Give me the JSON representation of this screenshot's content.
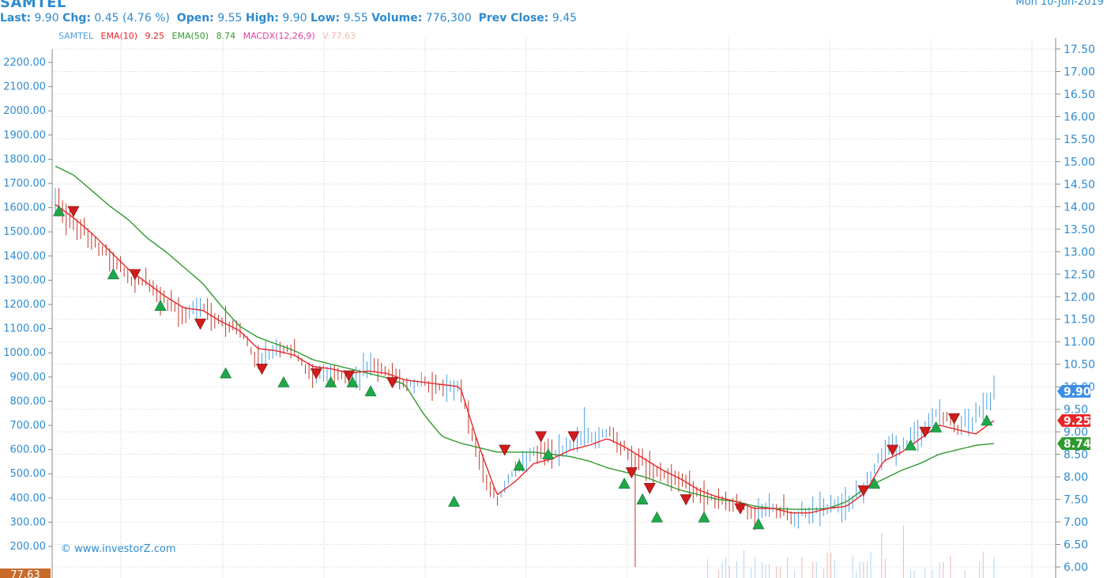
{
  "header": {
    "ticker": "SAMTEL",
    "last_label": "Last:",
    "last_value": "9.90",
    "chg_label": "Chg:",
    "chg_value": "0.45 (4.76 %)",
    "open_label": "Open:",
    "open_value": "9.55",
    "high_label": "High:",
    "high_value": "9.90",
    "low_label": "Low:",
    "low_value": "9.55",
    "volume_label": "Volume:",
    "volume_value": "776,300",
    "prev_label": "Prev Close:",
    "prev_value": "9.45",
    "date": "Mon 10-Jun-2019"
  },
  "legend": {
    "symbol": "SAMTEL",
    "ema10_label": "EMA(10)",
    "ema10_value": "9.25",
    "ema50_label": "EMA(50)",
    "ema50_value": "8.74",
    "macd_label": "MACDX(12,26,9)",
    "vol_label": "V:77.63"
  },
  "watermark": "© www.investorZ.com",
  "colors": {
    "header_blue": "#2e8bd0",
    "ema10": "#e8262a",
    "ema50": "#2e9a2e",
    "price_up": "#4a9ee0",
    "price_down": "#c0392b",
    "macd": "#e040a0",
    "vol_tag": "#c86a2a",
    "buy_marker": "#1fa84a",
    "sell_marker": "#d01c1c"
  },
  "chart_data": {
    "type": "line",
    "subtype": "ohlc-bars-with-ema-overlays-and-signals",
    "grid": true,
    "left_axis": {
      "ticks": [
        "200.00",
        "300.00",
        "400.00",
        "500.00",
        "600.00",
        "700.00",
        "800.00",
        "900.00",
        "1000.00",
        "1100.00",
        "1200.00",
        "1300.00",
        "1400.00",
        "1500.00",
        "1600.00",
        "1700.00",
        "1800.00",
        "1900.00",
        "2000.00",
        "2100.00",
        "2200.00"
      ],
      "ylim": [
        150,
        2260
      ]
    },
    "right_axis": {
      "ticks": [
        "6.00",
        "6.50",
        "7.00",
        "7.50",
        "8.00",
        "8.50",
        "9.00",
        "9.50",
        "10.00",
        "10.50",
        "11.00",
        "11.50",
        "12.00",
        "12.50",
        "13.00",
        "13.50",
        "14.00",
        "14.50",
        "15.00",
        "15.50",
        "16.00",
        "16.50",
        "17.00",
        "17.50"
      ],
      "ylim": [
        5.9,
        17.6
      ]
    },
    "left_badge": "77.63",
    "price_labels": [
      {
        "text": "9.90",
        "value": 9.9,
        "color": "#3a8ee6"
      },
      {
        "text": "9.25",
        "value": 9.25,
        "color": "#e8262a"
      },
      {
        "text": "8.74",
        "value": 8.74,
        "color": "#2e9a2e"
      }
    ],
    "n_bars": 260,
    "close": [
      14.1,
      13.6,
      13.3,
      12.9,
      12.4,
      12.3,
      11.9,
      11.6,
      11.8,
      11.45,
      11.3,
      10.5,
      10.95,
      10.75,
      10.2,
      10.4,
      10.15,
      10.45,
      10.3,
      10.05,
      10.1,
      10.0,
      10.0,
      8.4,
      7.45,
      8.2,
      8.6,
      8.5,
      8.75,
      8.8,
      9.0,
      8.6,
      8.3,
      8.05,
      7.9,
      7.6,
      7.5,
      7.4,
      7.2,
      7.3,
      7.1,
      7.25,
      7.3,
      7.4,
      7.8,
      8.6,
      8.65,
      9.0,
      9.45,
      9.1,
      9.3,
      9.9
    ],
    "ema10": [
      14.05,
      13.75,
      13.4,
      13.0,
      12.6,
      12.3,
      12.0,
      11.75,
      11.7,
      11.45,
      11.25,
      10.85,
      10.8,
      10.7,
      10.45,
      10.4,
      10.3,
      10.35,
      10.3,
      10.15,
      10.1,
      10.05,
      10.0,
      8.7,
      7.6,
      7.9,
      8.3,
      8.4,
      8.6,
      8.7,
      8.85,
      8.65,
      8.4,
      8.15,
      7.95,
      7.7,
      7.55,
      7.45,
      7.3,
      7.3,
      7.2,
      7.2,
      7.3,
      7.35,
      7.65,
      8.35,
      8.55,
      8.85,
      9.15,
      9.05,
      8.95,
      9.25
    ],
    "ema50": [
      14.9,
      14.7,
      14.35,
      14.0,
      13.7,
      13.3,
      13.0,
      12.65,
      12.3,
      11.8,
      11.35,
      11.1,
      10.95,
      10.8,
      10.6,
      10.5,
      10.4,
      10.3,
      10.2,
      10.05,
      9.4,
      8.9,
      8.75,
      8.65,
      8.55,
      8.55,
      8.55,
      8.5,
      8.45,
      8.35,
      8.2,
      8.1,
      8.0,
      7.85,
      7.7,
      7.6,
      7.5,
      7.45,
      7.35,
      7.3,
      7.28,
      7.28,
      7.3,
      7.45,
      7.75,
      7.95,
      8.15,
      8.3,
      8.5,
      8.6,
      8.7,
      8.74
    ],
    "signals": [
      {
        "bar": 1,
        "type": "buy",
        "value": 13.9
      },
      {
        "bar": 5,
        "type": "sell",
        "value": 13.9
      },
      {
        "bar": 16,
        "type": "buy",
        "value": 12.5
      },
      {
        "bar": 22,
        "type": "sell",
        "value": 12.5
      },
      {
        "bar": 29,
        "type": "buy",
        "value": 11.8
      },
      {
        "bar": 40,
        "type": "sell",
        "value": 11.4
      },
      {
        "bar": 47,
        "type": "buy",
        "value": 10.3
      },
      {
        "bar": 57,
        "type": "sell",
        "value": 10.4
      },
      {
        "bar": 63,
        "type": "buy",
        "value": 10.1
      },
      {
        "bar": 72,
        "type": "sell",
        "value": 10.3
      },
      {
        "bar": 76,
        "type": "buy",
        "value": 10.1
      },
      {
        "bar": 81,
        "type": "sell",
        "value": 10.25
      },
      {
        "bar": 82,
        "type": "buy",
        "value": 10.1
      },
      {
        "bar": 87,
        "type": "buy",
        "value": 9.9
      },
      {
        "bar": 93,
        "type": "sell",
        "value": 10.1
      },
      {
        "bar": 110,
        "type": "buy",
        "value": 7.45
      },
      {
        "bar": 124,
        "type": "sell",
        "value": 8.6
      },
      {
        "bar": 128,
        "type": "buy",
        "value": 8.25
      },
      {
        "bar": 134,
        "type": "sell",
        "value": 8.9
      },
      {
        "bar": 136,
        "type": "buy",
        "value": 8.5
      },
      {
        "bar": 143,
        "type": "sell",
        "value": 8.9
      },
      {
        "bar": 157,
        "type": "buy",
        "value": 7.85
      },
      {
        "bar": 159,
        "type": "sell",
        "value": 8.1
      },
      {
        "bar": 162,
        "type": "buy",
        "value": 7.5
      },
      {
        "bar": 164,
        "type": "sell",
        "value": 7.75
      },
      {
        "bar": 166,
        "type": "buy",
        "value": 7.1
      },
      {
        "bar": 174,
        "type": "sell",
        "value": 7.5
      },
      {
        "bar": 179,
        "type": "buy",
        "value": 7.1
      },
      {
        "bar": 189,
        "type": "sell",
        "value": 7.3
      },
      {
        "bar": 194,
        "type": "buy",
        "value": 6.95
      },
      {
        "bar": 223,
        "type": "sell",
        "value": 7.7
      },
      {
        "bar": 226,
        "type": "buy",
        "value": 7.85
      },
      {
        "bar": 231,
        "type": "sell",
        "value": 8.6
      },
      {
        "bar": 236,
        "type": "buy",
        "value": 8.7
      },
      {
        "bar": 240,
        "type": "sell",
        "value": 9.0
      },
      {
        "bar": 243,
        "type": "buy",
        "value": 9.1
      },
      {
        "bar": 248,
        "type": "sell",
        "value": 9.3
      },
      {
        "bar": 257,
        "type": "buy",
        "value": 9.25
      }
    ]
  }
}
